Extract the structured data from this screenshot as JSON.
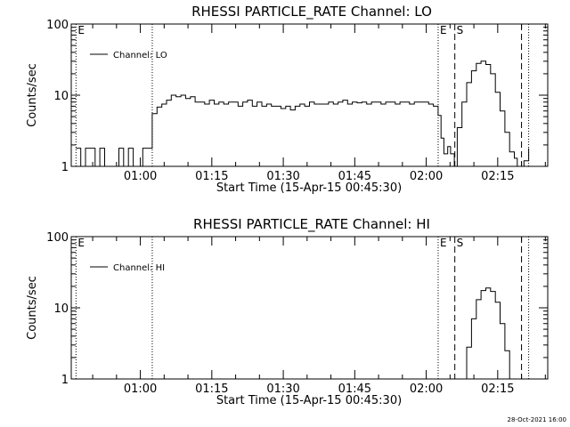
{
  "footer": {
    "timestamp": "28-Oct-2021 16:00"
  },
  "chart_data": [
    {
      "type": "line",
      "title": "RHESSI PARTICLE_RATE Channel: LO",
      "xlabel": "Start Time (15-Apr-15 00:45:30)",
      "ylabel": "Counts/sec",
      "x_unit": "minutes after 00:45:30",
      "xlim": [
        0,
        100
      ],
      "ylim": [
        1,
        100
      ],
      "yscale": "log",
      "x_tick_labels": [
        "01:00",
        "01:15",
        "01:30",
        "01:45",
        "02:00",
        "02:15"
      ],
      "y_tick_labels": [
        "1",
        "10",
        "100"
      ],
      "legend": {
        "label": "Channel: LO",
        "position": "top-left"
      },
      "vlines": [
        {
          "label": "E",
          "x": 1,
          "style": "dotted"
        },
        {
          "label": "",
          "x": 17,
          "style": "dotted"
        },
        {
          "label": "E",
          "x": 77,
          "style": "dotted"
        },
        {
          "label": "S",
          "x": 80.5,
          "style": "dashed"
        },
        {
          "label": "",
          "x": 94.5,
          "style": "dashed"
        },
        {
          "label": "",
          "x": 96,
          "style": "dotted"
        }
      ],
      "series": [
        {
          "name": "Channel: LO",
          "x": [
            1,
            2,
            3,
            4,
            5,
            6,
            7,
            8,
            9,
            10,
            11,
            12,
            13,
            14,
            15,
            16,
            16.8,
            17,
            18,
            19,
            20,
            21,
            22,
            23,
            24,
            25,
            26,
            27,
            28,
            29,
            30,
            31,
            32,
            33,
            34,
            35,
            36,
            37,
            38,
            39,
            40,
            41,
            42,
            43,
            44,
            45,
            46,
            47,
            48,
            49,
            50,
            51,
            52,
            53,
            54,
            55,
            56,
            57,
            58,
            59,
            60,
            61,
            62,
            63,
            64,
            65,
            66,
            67,
            68,
            69,
            70,
            71,
            72,
            73,
            74,
            75,
            76,
            77,
            77.6,
            78.2,
            79,
            79.6,
            80.4,
            81,
            82,
            83,
            84,
            85,
            86,
            87,
            88,
            89,
            90,
            91,
            92,
            93,
            93.6,
            94.3,
            95,
            96
          ],
          "y": [
            1.8,
            1,
            1.8,
            1.8,
            1,
            1.8,
            1,
            1,
            1,
            1.8,
            1,
            1.8,
            1,
            1,
            1.8,
            1.8,
            1.8,
            5.5,
            6.8,
            7.5,
            8.5,
            10,
            9.5,
            10,
            9,
            9.5,
            8,
            8,
            7.5,
            8.5,
            7.5,
            8,
            7.5,
            8,
            8,
            7,
            8,
            8.5,
            7,
            8,
            7,
            7.5,
            7,
            7,
            6.5,
            7,
            6.2,
            7,
            7.5,
            7,
            8,
            7.5,
            7.5,
            7.5,
            8,
            7.5,
            8,
            8.5,
            7.5,
            8,
            7.8,
            8,
            7.5,
            8,
            8,
            7.5,
            8,
            8,
            7.5,
            8,
            8,
            7.5,
            8,
            8,
            8,
            7.5,
            7,
            5.2,
            2.5,
            1.5,
            1.9,
            1.5,
            1,
            3.5,
            8,
            15,
            22,
            28,
            30,
            27,
            20,
            11,
            6,
            3,
            1.6,
            1.3,
            1,
            1,
            1.2,
            1.8
          ]
        }
      ]
    },
    {
      "type": "line",
      "title": "RHESSI PARTICLE_RATE Channel: HI",
      "xlabel": "Start Time (15-Apr-15 00:45:30)",
      "ylabel": "Counts/sec",
      "x_unit": "minutes after 00:45:30",
      "xlim": [
        0,
        100
      ],
      "ylim": [
        1,
        100
      ],
      "yscale": "log",
      "x_tick_labels": [
        "01:00",
        "01:15",
        "01:30",
        "01:45",
        "02:00",
        "02:15"
      ],
      "y_tick_labels": [
        "1",
        "10",
        "100"
      ],
      "legend": {
        "label": "Channel: HI",
        "position": "top-left"
      },
      "vlines": [
        {
          "label": "E",
          "x": 1,
          "style": "dotted"
        },
        {
          "label": "",
          "x": 17,
          "style": "dotted"
        },
        {
          "label": "E",
          "x": 77,
          "style": "dotted"
        },
        {
          "label": "S",
          "x": 80.5,
          "style": "dashed"
        },
        {
          "label": "",
          "x": 94.5,
          "style": "dashed"
        },
        {
          "label": "",
          "x": 96,
          "style": "dotted"
        }
      ],
      "series": [
        {
          "name": "Channel: HI",
          "x": [
            82.3,
            83,
            84,
            85,
            86,
            87,
            88,
            89,
            90,
            91,
            92
          ],
          "y": [
            1,
            2.8,
            7,
            13,
            17.5,
            19,
            17,
            12,
            6,
            2.5,
            1
          ]
        }
      ]
    }
  ]
}
